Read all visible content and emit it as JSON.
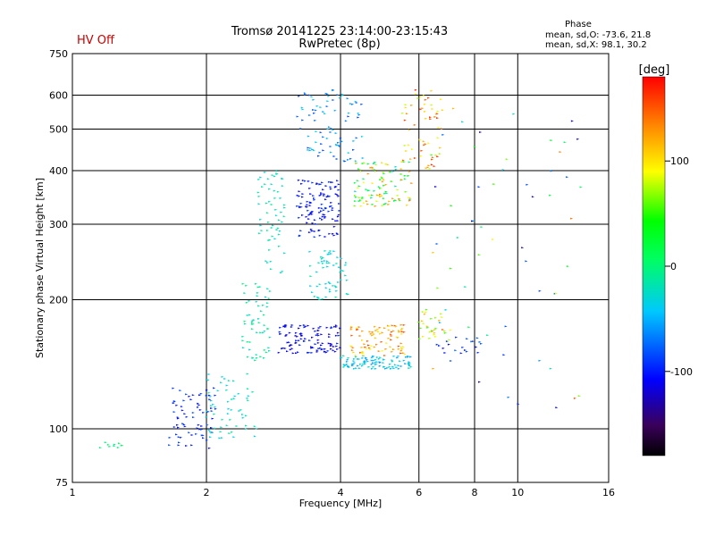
{
  "header": {
    "title": "Tromsø 20141225 23:14:00-23:15:43",
    "subtitle": "RwPretec (8p)",
    "status": "HV Off",
    "phase_heading": "Phase",
    "phase_o": "mean, sd,O: -73.6, 21.8",
    "phase_x": "mean, sd,X:  98.1, 30.2"
  },
  "colorbar": {
    "unit": "[deg]",
    "ticks": [
      {
        "value": 100,
        "label": "100"
      },
      {
        "value": 0,
        "label": "0"
      },
      {
        "value": -100,
        "label": "-100"
      }
    ],
    "range": [
      -180,
      180
    ]
  },
  "colors": {
    "status": "#cc0000",
    "grid": "#000000"
  },
  "chart_data": {
    "type": "scatter",
    "title": "Tromsø 20141225 23:14:00-23:15:43",
    "subtitle": "RwPretec (8p)",
    "xlabel": "Frequency [MHz]",
    "ylabel": "Stationary phase Virtual Height [km]",
    "xscale": "log",
    "yscale": "log",
    "xlim": [
      1,
      16
    ],
    "ylim": [
      75,
      750
    ],
    "xticks": [
      1,
      2,
      4,
      6,
      8,
      10,
      16
    ],
    "xtick_labels": [
      "1",
      "2",
      "4",
      "6",
      "8",
      "10",
      "16"
    ],
    "yticks": [
      75,
      100,
      200,
      300,
      400,
      500,
      600,
      750
    ],
    "ytick_labels": [
      "75",
      "100",
      "200",
      "300",
      "400",
      "500",
      "600",
      "750"
    ],
    "grid": true,
    "color_variable": "Phase [deg]",
    "clusters": [
      {
        "x": [
          1.15,
          1.3
        ],
        "y": [
          90,
          93
        ],
        "phase": [
          -10,
          10
        ],
        "n": 10
      },
      {
        "x": [
          1.65,
          2.1
        ],
        "y": [
          90,
          125
        ],
        "phase": [
          -110,
          -80
        ],
        "n": 70
      },
      {
        "x": [
          2.0,
          2.6
        ],
        "y": [
          95,
          135
        ],
        "phase": [
          -40,
          -10
        ],
        "n": 60
      },
      {
        "x": [
          2.4,
          2.8
        ],
        "y": [
          140,
          220
        ],
        "phase": [
          -30,
          0
        ],
        "n": 60
      },
      {
        "x": [
          2.6,
          3.0
        ],
        "y": [
          230,
          400
        ],
        "phase": [
          -30,
          -10
        ],
        "n": 60
      },
      {
        "x": [
          2.9,
          4.0
        ],
        "y": [
          150,
          175
        ],
        "phase": [
          -125,
          -95
        ],
        "n": 110
      },
      {
        "x": [
          3.2,
          4.0
        ],
        "y": [
          280,
          380
        ],
        "phase": [
          -115,
          -90
        ],
        "n": 120
      },
      {
        "x": [
          3.4,
          4.2
        ],
        "y": [
          200,
          260
        ],
        "phase": [
          -40,
          -15
        ],
        "n": 60
      },
      {
        "x": [
          3.2,
          4.5
        ],
        "y": [
          420,
          620
        ],
        "phase": [
          -90,
          -30
        ],
        "n": 90
      },
      {
        "x": [
          4.0,
          5.8
        ],
        "y": [
          138,
          148
        ],
        "phase": [
          -60,
          -20
        ],
        "n": 100
      },
      {
        "x": [
          4.2,
          5.6
        ],
        "y": [
          148,
          175
        ],
        "phase": [
          90,
          160
        ],
        "n": 90
      },
      {
        "x": [
          4.3,
          5.8
        ],
        "y": [
          330,
          420
        ],
        "phase": [
          -40,
          140
        ],
        "n": 110
      },
      {
        "x": [
          5.5,
          6.8
        ],
        "y": [
          400,
          620
        ],
        "phase": [
          70,
          170
        ],
        "n": 60
      },
      {
        "x": [
          6.0,
          7.2
        ],
        "y": [
          160,
          190
        ],
        "phase": [
          50,
          150
        ],
        "n": 30
      },
      {
        "x": [
          6.5,
          8.5
        ],
        "y": [
          150,
          165
        ],
        "phase": [
          -110,
          -70
        ],
        "n": 20
      },
      {
        "x": [
          6.3,
          14.0
        ],
        "y": [
          110,
          620
        ],
        "phase": [
          -140,
          160
        ],
        "n": 60
      }
    ]
  }
}
